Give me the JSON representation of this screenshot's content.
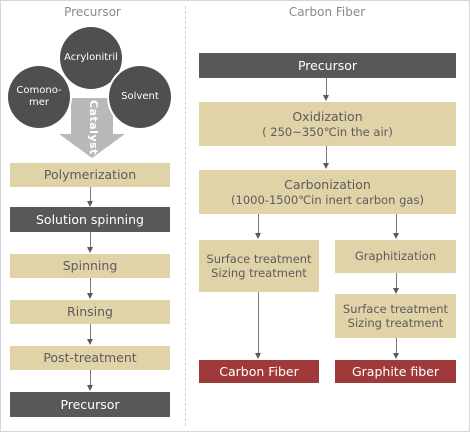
{
  "colors": {
    "tan": "#e0d3a8",
    "dark": "#585858",
    "red": "#a03a3a",
    "circle": "#4f4f4f"
  },
  "left": {
    "title": "Precursor",
    "inputs": {
      "top": "Acrylonitril",
      "left": "Comono-\nmer",
      "right": "Solvent",
      "catalyst": "Catalyst"
    },
    "steps": [
      "Polymerization",
      "Solution spinning",
      "Spinning",
      "Rinsing",
      "Post-treatment",
      "Precursor"
    ]
  },
  "right": {
    "title": "Carbon Fiber",
    "precursor": "Precursor",
    "oxidization": {
      "line1": "Oxidization",
      "line2": "( 250~350℃in the air)"
    },
    "carbonization": {
      "line1": "Carbonization",
      "line2": "(1000-1500℃in inert carbon gas)"
    },
    "branch_left": {
      "treatment": "Surface treatment\nSizing treatment",
      "result": "Carbon Fiber"
    },
    "branch_right": {
      "graphitization": "Graphitization",
      "treatment": "Surface treatment\nSizing treatment",
      "result": "Graphite fiber"
    }
  }
}
